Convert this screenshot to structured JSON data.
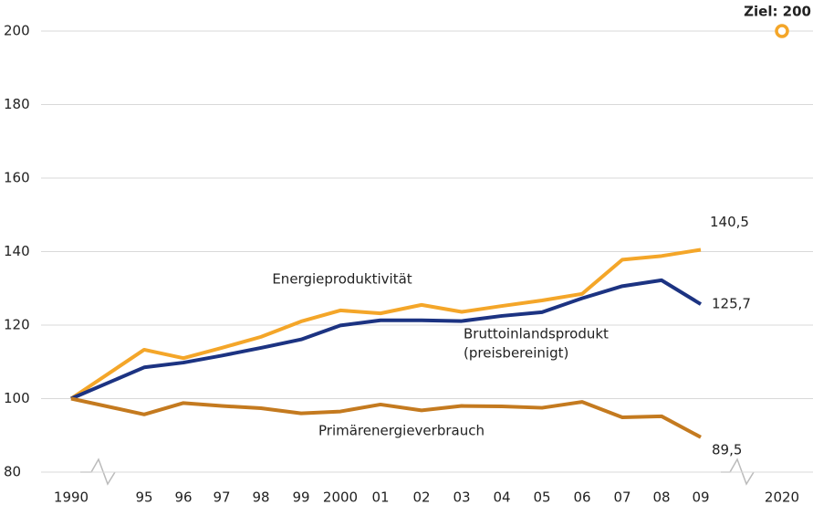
{
  "chart_data": {
    "type": "line",
    "categories": [
      "1990",
      "95",
      "96",
      "97",
      "98",
      "99",
      "2000",
      "01",
      "02",
      "03",
      "04",
      "05",
      "06",
      "07",
      "08",
      "09",
      "2020"
    ],
    "ylim": [
      80,
      200
    ],
    "yticks": [
      80,
      100,
      120,
      140,
      160,
      180,
      200
    ],
    "grid": true,
    "series": [
      {
        "name": "Energieproduktivität",
        "color": "#f4a629",
        "values": [
          100,
          113.3,
          111,
          113.8,
          116.8,
          121,
          124,
          123.2,
          125.5,
          123.6,
          125.2,
          126.7,
          128.5,
          137.8,
          138.8,
          140.5,
          null
        ],
        "value_labels": [
          null,
          null,
          null,
          null,
          null,
          null,
          null,
          null,
          null,
          null,
          null,
          null,
          null,
          null,
          null,
          "140,5",
          null
        ]
      },
      {
        "name": "Bruttoinlandsprodukt",
        "name_note": "(preisbereinigt)",
        "color": "#1c3382",
        "values": [
          100,
          108.5,
          109.8,
          111.7,
          113.8,
          116.1,
          119.9,
          121.3,
          121.3,
          121.1,
          122.5,
          123.5,
          127.3,
          130.6,
          132.2,
          125.7,
          null
        ],
        "value_labels": [
          null,
          null,
          null,
          null,
          null,
          null,
          null,
          null,
          null,
          null,
          null,
          null,
          null,
          null,
          null,
          "125,7",
          null
        ]
      },
      {
        "name": "Primärenergieverbrauch",
        "color": "#c47a1f",
        "values": [
          100,
          95.7,
          98.8,
          98,
          97.4,
          96,
          96.5,
          98.4,
          96.8,
          98,
          97.9,
          97.5,
          99.1,
          94.9,
          95.2,
          89.5,
          null
        ],
        "value_labels": [
          null,
          null,
          null,
          null,
          null,
          null,
          null,
          null,
          null,
          null,
          null,
          null,
          null,
          null,
          null,
          "89,5",
          null
        ]
      }
    ],
    "target": {
      "value": 200,
      "label": "Ziel: 200",
      "color": "#f4a629"
    }
  }
}
